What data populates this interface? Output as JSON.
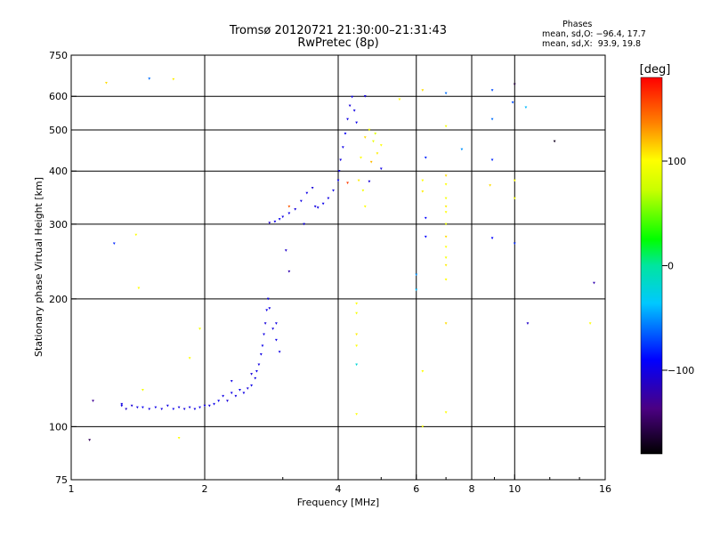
{
  "title": "Tromsø 20120721 21:30:00–21:31:43",
  "subtitle": "RwPretec (8p)",
  "phases_panel": {
    "heading": "Phases",
    "line_o": "mean, sd,O: −96.4, 17.7",
    "line_x": "mean, sd,X:  93.9, 19.8"
  },
  "chart_data": {
    "type": "scatter",
    "xlabel": "Frequency [MHz]",
    "ylabel": "Stationary phase Virtual Height [km]",
    "x_scale": "log",
    "y_scale": "log",
    "xlim": [
      1,
      16
    ],
    "ylim": [
      75,
      750
    ],
    "grid": true,
    "x_ticks": [
      1,
      2,
      4,
      6,
      8,
      10,
      16
    ],
    "x_tick_labels": [
      "1",
      "2",
      "4",
      "6",
      "8",
      "10",
      "16"
    ],
    "x_grid": [
      2,
      4,
      6,
      8,
      10
    ],
    "y_ticks": [
      75,
      100,
      200,
      300,
      400,
      500,
      600,
      750
    ],
    "y_tick_labels": [
      "75",
      "100",
      "200",
      "300",
      "400",
      "500",
      "600",
      "750"
    ],
    "y_grid": [
      100,
      200,
      300,
      400,
      500,
      600
    ],
    "colorbar": {
      "label": "[deg]",
      "range": [
        -180,
        180
      ],
      "ticks": [
        100,
        0,
        -100
      ],
      "tick_labels": [
        "100",
        "0",
        "−100"
      ]
    },
    "series": [
      {
        "points": [
          [
            1.3,
            113
          ],
          [
            1.33,
            110
          ],
          [
            1.37,
            112
          ],
          [
            1.41,
            111
          ],
          [
            1.45,
            111
          ],
          [
            1.5,
            110
          ],
          [
            1.55,
            111
          ],
          [
            1.6,
            110
          ],
          [
            1.65,
            112
          ],
          [
            1.7,
            110
          ],
          [
            1.75,
            111
          ],
          [
            1.8,
            110
          ],
          [
            1.85,
            111
          ],
          [
            1.9,
            110
          ],
          [
            1.95,
            111
          ],
          [
            2.0,
            112
          ],
          [
            2.05,
            112
          ],
          [
            2.1,
            113
          ],
          [
            2.15,
            115
          ],
          [
            2.2,
            118
          ],
          [
            2.25,
            115
          ],
          [
            2.3,
            120
          ],
          [
            2.35,
            118
          ],
          [
            2.4,
            122
          ],
          [
            2.45,
            120
          ],
          [
            2.5,
            123
          ],
          [
            2.55,
            125
          ],
          [
            2.6,
            130
          ],
          [
            2.62,
            135
          ],
          [
            2.65,
            140
          ],
          [
            2.68,
            148
          ],
          [
            2.7,
            155
          ],
          [
            2.72,
            165
          ],
          [
            2.74,
            175
          ],
          [
            2.76,
            188
          ],
          [
            2.78,
            200
          ],
          [
            2.8,
            190
          ],
          [
            2.85,
            170
          ],
          [
            2.9,
            160
          ],
          [
            2.95,
            150
          ],
          [
            2.8,
            302
          ],
          [
            2.88,
            304
          ],
          [
            2.95,
            308
          ],
          [
            3.0,
            312
          ],
          [
            3.1,
            318
          ],
          [
            3.2,
            325
          ],
          [
            3.3,
            340
          ],
          [
            3.4,
            355
          ],
          [
            3.5,
            365
          ],
          [
            3.55,
            330
          ],
          [
            3.6,
            328
          ],
          [
            3.7,
            335
          ],
          [
            3.8,
            345
          ],
          [
            3.9,
            360
          ],
          [
            4.0,
            380
          ],
          [
            4.02,
            400
          ],
          [
            4.05,
            425
          ],
          [
            4.1,
            455
          ],
          [
            4.15,
            490
          ],
          [
            4.2,
            530
          ],
          [
            4.25,
            570
          ],
          [
            4.3,
            598
          ],
          [
            4.35,
            555
          ],
          [
            4.4,
            520
          ],
          [
            1.3,
            112
          ],
          [
            1.12,
            115
          ],
          [
            2.3,
            128
          ],
          [
            2.55,
            133
          ],
          [
            2.9,
            175
          ],
          [
            3.05,
            260
          ],
          [
            3.1,
            232
          ],
          [
            3.35,
            300
          ],
          [
            4.6,
            600
          ],
          [
            5.0,
            405
          ],
          [
            4.7,
            378
          ]
        ],
        "phases": [
          -100,
          -110,
          -105,
          -100,
          -95,
          -100,
          -98,
          -102,
          -100,
          -96,
          -100,
          -103,
          -99,
          -100,
          -97,
          -100,
          -102,
          -98,
          -95,
          -100,
          -104,
          -99,
          -101,
          -96,
          -100,
          -103,
          -99,
          -100,
          -97,
          -101,
          -100,
          -98,
          -100,
          -104,
          -99,
          -97,
          -100,
          -102,
          -98,
          -100,
          -110,
          -100,
          -95,
          -100,
          -98,
          -103,
          -100,
          -99,
          -105,
          -100,
          -101,
          -97,
          -100,
          -98,
          -96,
          -100,
          -102,
          -99,
          -95,
          -100,
          -104,
          -98,
          -100,
          -97,
          -100,
          -130,
          -100,
          -105,
          -100,
          -110,
          -120,
          -100,
          -100,
          -100,
          -105
        ]
      },
      {
        "points": [
          [
            4.5,
            430
          ],
          [
            4.6,
            480
          ],
          [
            4.7,
            500
          ],
          [
            4.8,
            470
          ],
          [
            4.9,
            440
          ],
          [
            5.0,
            460
          ],
          [
            4.75,
            420
          ],
          [
            4.85,
            490
          ],
          [
            4.55,
            360
          ],
          [
            4.45,
            380
          ],
          [
            4.6,
            330
          ],
          [
            7.0,
            390
          ],
          [
            7.0,
            372
          ],
          [
            7.0,
            345
          ],
          [
            7.0,
            330
          ],
          [
            7.0,
            320
          ],
          [
            7.0,
            300
          ],
          [
            7.0,
            280
          ],
          [
            7.0,
            265
          ],
          [
            7.0,
            250
          ],
          [
            7.0,
            240
          ],
          [
            7.0,
            222
          ],
          [
            7.0,
            175
          ],
          [
            7.0,
            108
          ],
          [
            7.0,
            510
          ],
          [
            6.2,
            380
          ],
          [
            6.2,
            358
          ],
          [
            6.2,
            135
          ],
          [
            6.2,
            100
          ],
          [
            6.2,
            620
          ],
          [
            4.4,
            195
          ],
          [
            4.4,
            185
          ],
          [
            4.4,
            165
          ],
          [
            4.4,
            155
          ],
          [
            4.4,
            140
          ],
          [
            4.4,
            107
          ],
          [
            1.2,
            645
          ],
          [
            1.4,
            283
          ],
          [
            1.42,
            212
          ],
          [
            1.45,
            122
          ],
          [
            1.7,
            658
          ],
          [
            1.75,
            94
          ],
          [
            1.85,
            145
          ],
          [
            1.95,
            170
          ],
          [
            3.1,
            330
          ],
          [
            5.5,
            590
          ],
          [
            10.0,
            380
          ],
          [
            10.0,
            345
          ],
          [
            14.8,
            175
          ],
          [
            8.8,
            370
          ],
          [
            4.2,
            375
          ]
        ],
        "phases": [
          100,
          110,
          95,
          90,
          105,
          100,
          120,
          85,
          95,
          105,
          100,
          110,
          100,
          95,
          105,
          100,
          90,
          110,
          100,
          95,
          105,
          100,
          110,
          100,
          95,
          100,
          105,
          100,
          95,
          110,
          100,
          95,
          105,
          100,
          -20,
          100,
          110,
          100,
          100,
          95,
          105,
          100,
          100,
          95,
          150,
          100,
          100,
          95,
          100,
          110,
          160
        ]
      },
      {
        "points": [
          [
            1.5,
            660
          ],
          [
            1.1,
            93
          ],
          [
            1.25,
            270
          ],
          [
            12.3,
            470
          ],
          [
            6.3,
            430
          ],
          [
            6.3,
            280
          ],
          [
            6.3,
            310
          ],
          [
            6.0,
            228
          ],
          [
            6.0,
            210
          ],
          [
            7.6,
            450
          ],
          [
            8.9,
            620
          ],
          [
            8.9,
            530
          ],
          [
            8.9,
            425
          ],
          [
            8.9,
            278
          ],
          [
            9.9,
            580
          ],
          [
            10.0,
            270
          ],
          [
            10.0,
            640
          ],
          [
            10.6,
            565
          ],
          [
            10.7,
            175
          ],
          [
            15.1,
            218
          ],
          [
            7.0,
            610
          ]
        ],
        "phases": [
          -60,
          -150,
          -80,
          -170,
          -80,
          -90,
          -90,
          -50,
          -40,
          -50,
          -70,
          -60,
          -80,
          -90,
          -70,
          -80,
          -160,
          -40,
          -110,
          -120,
          -60
        ]
      }
    ]
  }
}
